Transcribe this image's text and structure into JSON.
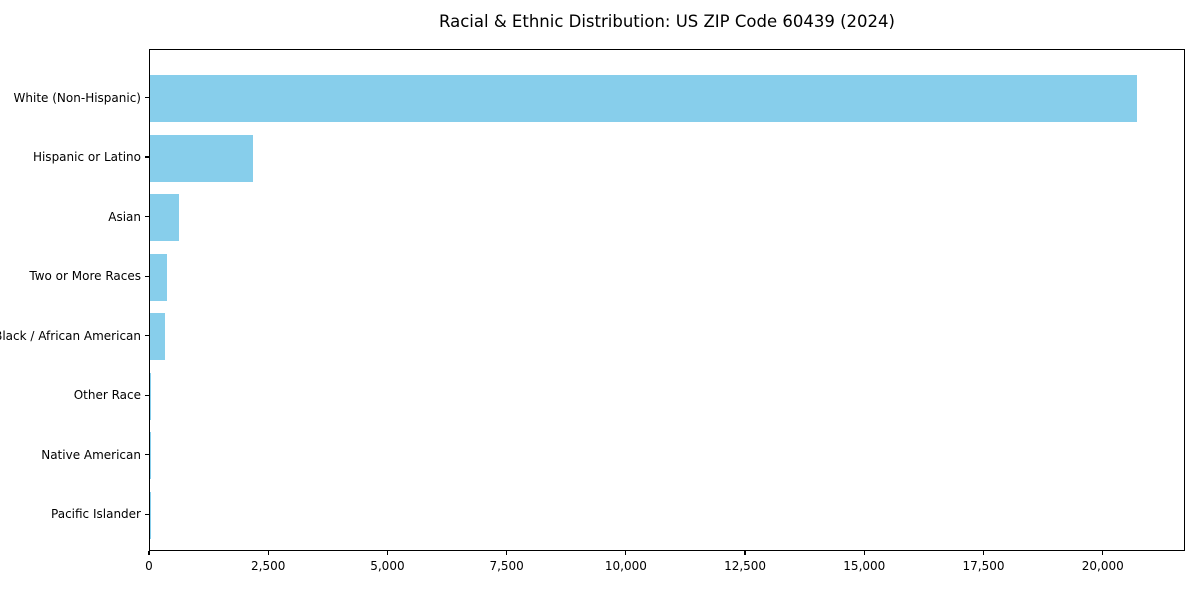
{
  "title": "Racial & Ethnic Distribution: US ZIP Code 60439 (2024)",
  "chart_data": {
    "type": "bar",
    "orientation": "horizontal",
    "title": "Racial & Ethnic Distribution: US ZIP Code 60439 (2024)",
    "xlabel": "",
    "ylabel": "",
    "categories": [
      "White (Non-Hispanic)",
      "Hispanic or Latino",
      "Asian",
      "Two or More Races",
      "Black / African American",
      "Other Race",
      "Native American",
      "Pacific Islander"
    ],
    "values": [
      20690,
      2160,
      610,
      360,
      320,
      30,
      12,
      5
    ],
    "xlim": [
      0,
      21725
    ],
    "x_ticks": [
      0,
      2500,
      5000,
      7500,
      10000,
      12500,
      15000,
      17500,
      20000
    ],
    "x_tick_labels": [
      "0",
      "2,500",
      "5,000",
      "7,500",
      "10,000",
      "12,500",
      "15,000",
      "17,500",
      "20,000"
    ],
    "bar_color": "#87CEEB",
    "axis_color": "#000000",
    "background_color": "#ffffff",
    "grid": false,
    "legend": null
  }
}
